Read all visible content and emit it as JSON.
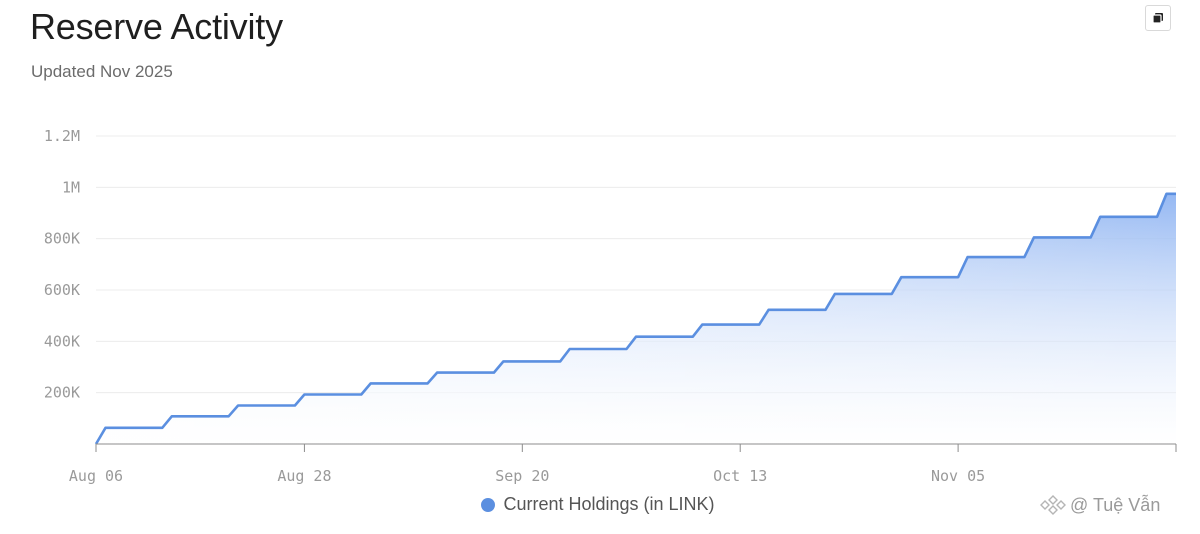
{
  "header": {
    "title": "Reserve Activity",
    "subtitle": "Updated Nov 2025"
  },
  "colors": {
    "line": "#5b8fe0",
    "fill_top": "#8fb4f2",
    "fill_bottom": "#ffffff",
    "grid": "#ececec",
    "axis": "#9a9a9a",
    "tick_text": "#9a9a9a"
  },
  "watermark": {
    "text": "@ Tuệ Vẫn",
    "icon": "binance-square-icon"
  },
  "chart_data": {
    "type": "area",
    "xlabel": "",
    "ylabel": "",
    "x_ticks": [
      "Aug 06",
      "Aug 28",
      "Sep 20",
      "Oct 13",
      "Nov 05"
    ],
    "y_ticks": [
      "200K",
      "400K",
      "600K",
      "800K",
      "1M",
      "1.2M"
    ],
    "ylim": [
      0,
      1200000
    ],
    "grid": true,
    "legend_position": "bottom-center",
    "series": [
      {
        "name": "Current Holdings (in LINK)",
        "points": [
          [
            "2025-08-06",
            0
          ],
          [
            "2025-08-07",
            63000
          ],
          [
            "2025-08-13",
            63000
          ],
          [
            "2025-08-14",
            108000
          ],
          [
            "2025-08-20",
            108000
          ],
          [
            "2025-08-21",
            150000
          ],
          [
            "2025-08-27",
            150000
          ],
          [
            "2025-08-28",
            193000
          ],
          [
            "2025-09-03",
            193000
          ],
          [
            "2025-09-04",
            236000
          ],
          [
            "2025-09-10",
            236000
          ],
          [
            "2025-09-11",
            278000
          ],
          [
            "2025-09-17",
            278000
          ],
          [
            "2025-09-18",
            322000
          ],
          [
            "2025-09-24",
            322000
          ],
          [
            "2025-09-25",
            370000
          ],
          [
            "2025-10-01",
            370000
          ],
          [
            "2025-10-02",
            418000
          ],
          [
            "2025-10-08",
            418000
          ],
          [
            "2025-10-09",
            465000
          ],
          [
            "2025-10-15",
            465000
          ],
          [
            "2025-10-16",
            523000
          ],
          [
            "2025-10-22",
            523000
          ],
          [
            "2025-10-23",
            585000
          ],
          [
            "2025-10-29",
            585000
          ],
          [
            "2025-10-30",
            650000
          ],
          [
            "2025-11-05",
            650000
          ],
          [
            "2025-11-06",
            728000
          ],
          [
            "2025-11-12",
            728000
          ],
          [
            "2025-11-13",
            805000
          ],
          [
            "2025-11-19",
            805000
          ],
          [
            "2025-11-20",
            885000
          ],
          [
            "2025-11-26",
            885000
          ],
          [
            "2025-11-27",
            975000
          ],
          [
            "2025-11-28",
            975000
          ]
        ]
      }
    ]
  }
}
